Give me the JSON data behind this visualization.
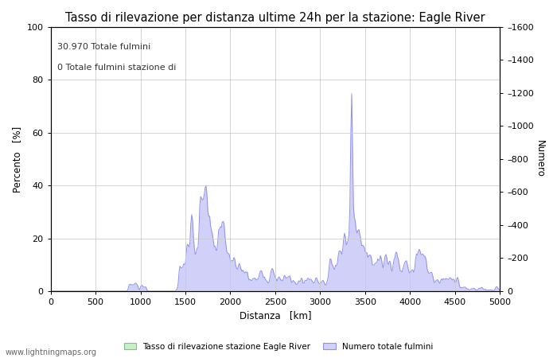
{
  "title": "Tasso di rilevazione per distanza ultime 24h per la stazione: Eagle River",
  "xlabel": "Distanza   [km]",
  "ylabel_left": "Percento   [%]",
  "ylabel_right": "Numero",
  "annotation_line1": "30.970 Totale fulmini",
  "annotation_line2": "0 Totale fulmini stazione di",
  "legend_label_green": "Tasso di rilevazione stazione Eagle River",
  "legend_label_blue": "Numero totale fulmini",
  "watermark": "www.lightningmaps.org",
  "xlim": [
    0,
    5000
  ],
  "ylim_left": [
    0,
    100
  ],
  "ylim_right": [
    0,
    1600
  ],
  "xticks": [
    0,
    500,
    1000,
    1500,
    2000,
    2500,
    3000,
    3500,
    4000,
    4500,
    5000
  ],
  "yticks_left": [
    0,
    20,
    40,
    60,
    80,
    100
  ],
  "yticks_right": [
    0,
    200,
    400,
    600,
    800,
    1000,
    1200,
    1400,
    1600
  ],
  "bg_color": "#ffffff",
  "line_color": "#9090ee",
  "fill_color_blue": "#d0d0f8",
  "fill_color_green": "#c8f0c8",
  "grid_color": "#cccccc",
  "title_fontsize": 10.5,
  "axis_fontsize": 8.5,
  "tick_fontsize": 8,
  "annotation_fontsize": 8
}
